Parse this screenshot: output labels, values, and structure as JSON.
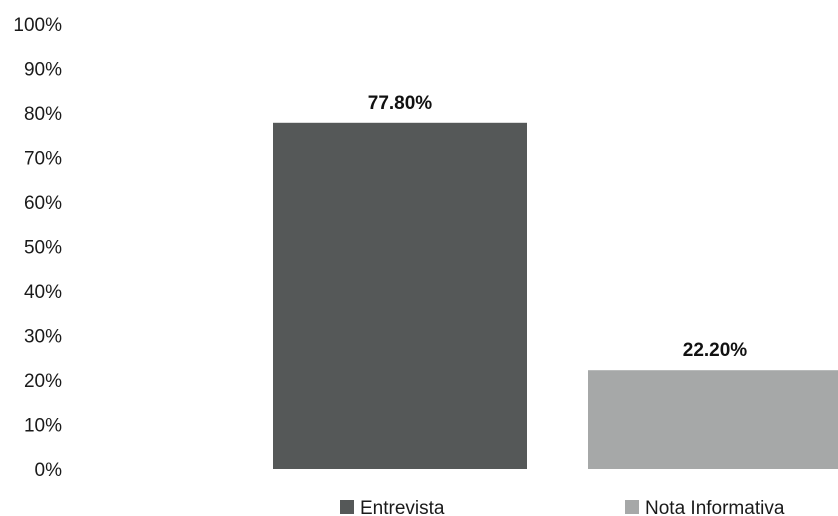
{
  "chart_data": {
    "type": "bar",
    "categories": [
      "Entrevista",
      "Nota Informativa"
    ],
    "values": [
      77.8,
      22.2
    ],
    "value_labels": [
      "77.80%",
      "22.20%"
    ],
    "colors": [
      "#555858",
      "#a6a8a8"
    ],
    "title": "",
    "xlabel": "",
    "ylabel": "",
    "ylim": [
      0,
      100
    ],
    "yticks": [
      0,
      10,
      20,
      30,
      40,
      50,
      60,
      70,
      80,
      90,
      100
    ],
    "ytick_labels": [
      "0%",
      "10%",
      "20%",
      "30%",
      "40%",
      "50%",
      "60%",
      "70%",
      "80%",
      "90%",
      "100%"
    ],
    "grid": false,
    "legend": {
      "position": "bottom",
      "entries": [
        "Entrevista",
        "Nota Informativa"
      ]
    }
  }
}
